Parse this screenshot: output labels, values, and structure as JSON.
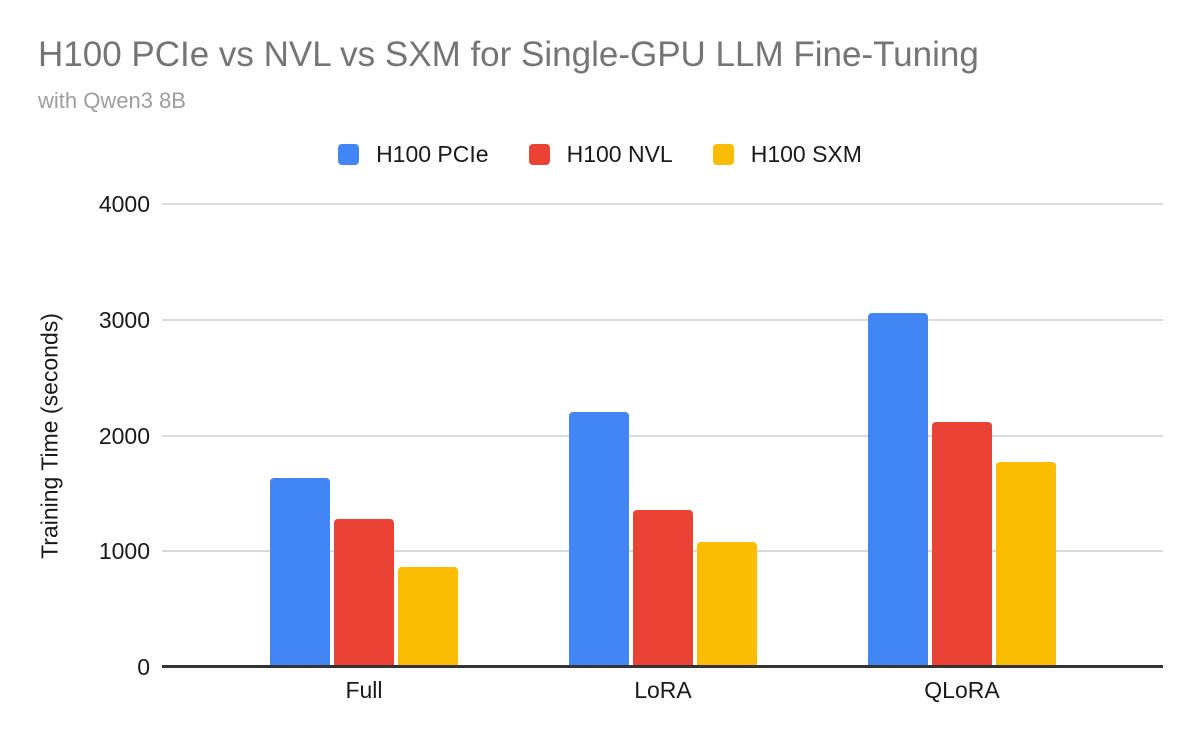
{
  "chart_data": {
    "type": "bar",
    "title": "H100 PCIe vs NVL vs SXM for Single-GPU LLM Fine-Tuning",
    "subtitle": "with Qwen3 8B",
    "xlabel": "",
    "ylabel": "Training Time (seconds)",
    "categories": [
      "Full",
      "LoRA",
      "QLoRA"
    ],
    "series": [
      {
        "name": "H100 PCIe",
        "color": "#4285F4",
        "values": [
          1635,
          2205,
          3055
        ]
      },
      {
        "name": "H100 NVL",
        "color": "#EA4335",
        "values": [
          1275,
          1355,
          2120
        ]
      },
      {
        "name": "H100 SXM",
        "color": "#FBBC04",
        "values": [
          860,
          1080,
          1775
        ]
      }
    ],
    "ylim": [
      0,
      4000
    ],
    "yticks": [
      0,
      1000,
      2000,
      3000,
      4000
    ],
    "grid": true,
    "legend_position": "top"
  },
  "style": {
    "background": "#ffffff",
    "title_color": "#757575",
    "subtitle_color": "#9e9e9e",
    "text_color": "#1a1a1a",
    "grid_color": "#dadada",
    "axis_color": "#333333"
  }
}
